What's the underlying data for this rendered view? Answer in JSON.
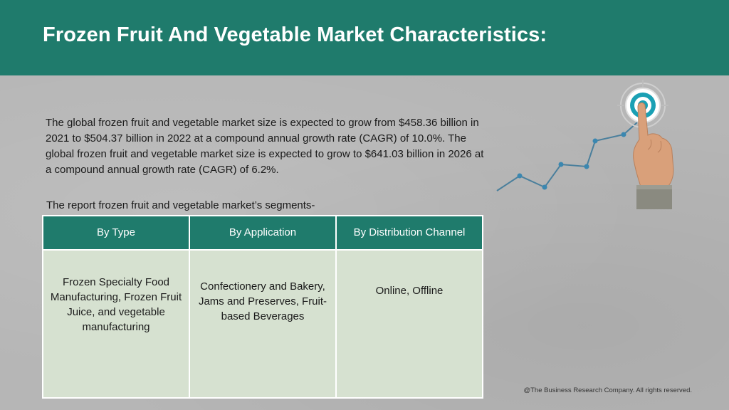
{
  "header": {
    "title": "Frozen Fruit And Vegetable Market Characteristics:"
  },
  "body": {
    "description": "The global frozen fruit and vegetable market size is expected to grow from $458.36 billion in 2021 to $504.37 billion in 2022 at a compound annual growth rate (CAGR) of 10.0%. The global frozen fruit and vegetable market size is expected to grow to $641.03 billion in 2026 at a compound annual growth rate (CAGR) of 6.2%.",
    "segments_intro": "The report frozen fruit and vegetable market’s segments-"
  },
  "table": {
    "headers": [
      "By Type",
      "By Application",
      "By Distribution Channel"
    ],
    "cells": [
      "Frozen Specialty Food Manufacturing, Frozen Fruit Juice, and vegetable manufacturing",
      "Confectionery and Bakery, Jams and Preserves, Fruit-based Beverages",
      "Online, Offline"
    ]
  },
  "footer": {
    "copyright": "@The Business Research Company. All rights reserved."
  },
  "graphic": {
    "icon": "growth-chart-target-hand-icon",
    "colors": {
      "line": "#4a7f9c",
      "target": "#1aa0b4",
      "header": "#1f7b6c"
    }
  }
}
